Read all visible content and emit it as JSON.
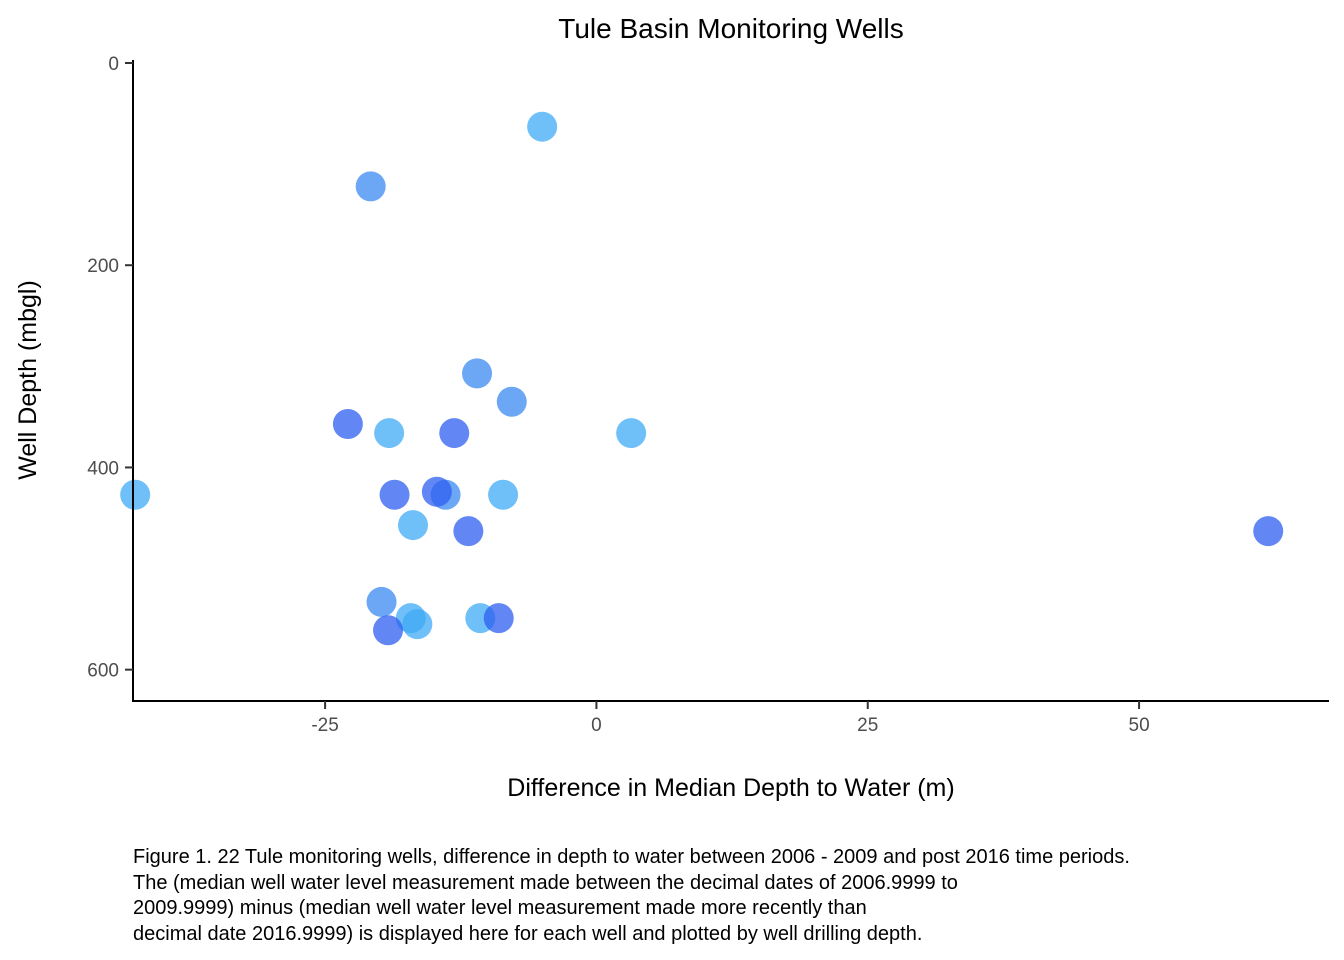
{
  "chart_data": {
    "type": "scatter",
    "title": "Tule Basin Monitoring Wells",
    "xlabel": "Difference in Median Depth to Water (m)",
    "ylabel": "Well Depth (mbgl)",
    "xlim": [
      -42.7,
      67.5
    ],
    "ylim": [
      0,
      630
    ],
    "y_reversed": true,
    "x_ticks": [
      -25,
      0,
      25,
      50
    ],
    "x_tick_labels": [
      "-25",
      "0",
      "25",
      "50"
    ],
    "y_ticks": [
      0,
      200,
      400,
      600
    ],
    "y_tick_labels": [
      "0",
      "200",
      "400",
      "600"
    ],
    "grid": false,
    "legend": "none",
    "point_colors": {
      "light": "#3fa9f5",
      "medium": "#3b8af2",
      "dark": "#2e5ff0"
    },
    "points": [
      {
        "x": -42.5,
        "y": 427,
        "shade": "light"
      },
      {
        "x": -5.0,
        "y": 63,
        "shade": "light"
      },
      {
        "x": -20.8,
        "y": 122,
        "shade": "medium"
      },
      {
        "x": -11.0,
        "y": 307,
        "shade": "medium"
      },
      {
        "x": -7.8,
        "y": 335,
        "shade": "medium"
      },
      {
        "x": -22.9,
        "y": 357,
        "shade": "dark"
      },
      {
        "x": -19.1,
        "y": 366,
        "shade": "light"
      },
      {
        "x": -13.1,
        "y": 366,
        "shade": "dark"
      },
      {
        "x": 3.2,
        "y": 366,
        "shade": "light"
      },
      {
        "x": -18.6,
        "y": 427,
        "shade": "dark"
      },
      {
        "x": -13.9,
        "y": 427,
        "shade": "medium"
      },
      {
        "x": -14.7,
        "y": 424,
        "shade": "dark"
      },
      {
        "x": -8.6,
        "y": 427,
        "shade": "light"
      },
      {
        "x": -16.9,
        "y": 457,
        "shade": "light"
      },
      {
        "x": -11.8,
        "y": 463,
        "shade": "dark"
      },
      {
        "x": 61.9,
        "y": 463,
        "shade": "dark"
      },
      {
        "x": -19.8,
        "y": 533,
        "shade": "medium"
      },
      {
        "x": -17.1,
        "y": 549,
        "shade": "light"
      },
      {
        "x": -16.5,
        "y": 555,
        "shade": "light"
      },
      {
        "x": -10.7,
        "y": 549,
        "shade": "light"
      },
      {
        "x": -9.0,
        "y": 549,
        "shade": "dark"
      },
      {
        "x": -19.2,
        "y": 561,
        "shade": "dark"
      }
    ]
  },
  "caption": {
    "lines": [
      "Figure 1. 22 Tule monitoring wells, difference in depth to water between 2006 - 2009 and post 2016 time periods.",
      "The (median well water level measurement made between the decimal dates of 2006.9999 to",
      "2009.9999) minus (median well water level measurement made more recently than",
      "decimal date 2016.9999) is displayed here for each well and plotted by well drilling depth."
    ]
  }
}
